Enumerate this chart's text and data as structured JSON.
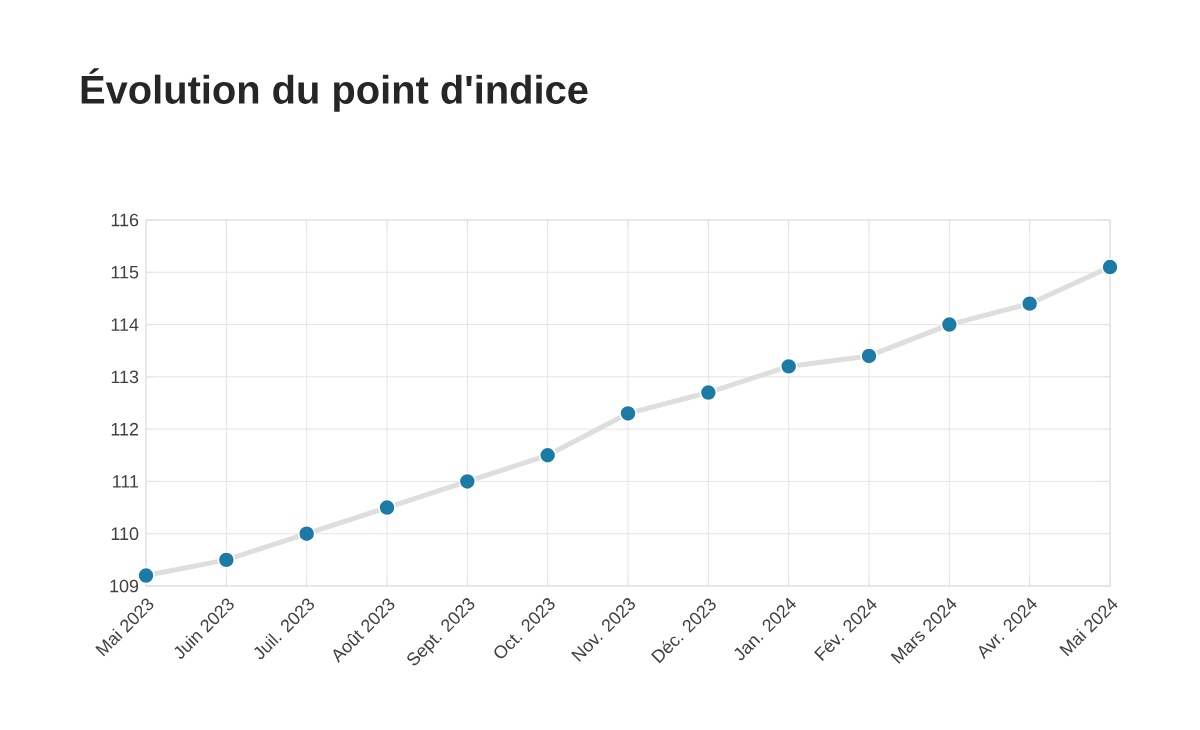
{
  "chart_data": {
    "type": "line",
    "title": "Évolution du point d'indice",
    "categories": [
      "Mai 2023",
      "Juin 2023",
      "Juil. 2023",
      "Août 2023",
      "Sept. 2023",
      "Oct. 2023",
      "Nov. 2023",
      "Déc. 2023",
      "Jan. 2024",
      "Fév. 2024",
      "Mars 2024",
      "Avr. 2024",
      "Mai 2024"
    ],
    "series": [
      {
        "color": "#1b7aa6",
        "values": [
          109.2,
          109.5,
          110.0,
          110.5,
          111.0,
          111.5,
          112.3,
          112.7,
          113.2,
          113.4,
          114.0,
          114.4,
          115.1
        ]
      }
    ],
    "ylim": [
      109,
      116
    ],
    "yticks": [
      109,
      110,
      111,
      112,
      113,
      114,
      115,
      116
    ],
    "grid": true,
    "marker": "circle",
    "line_style": "solid"
  }
}
